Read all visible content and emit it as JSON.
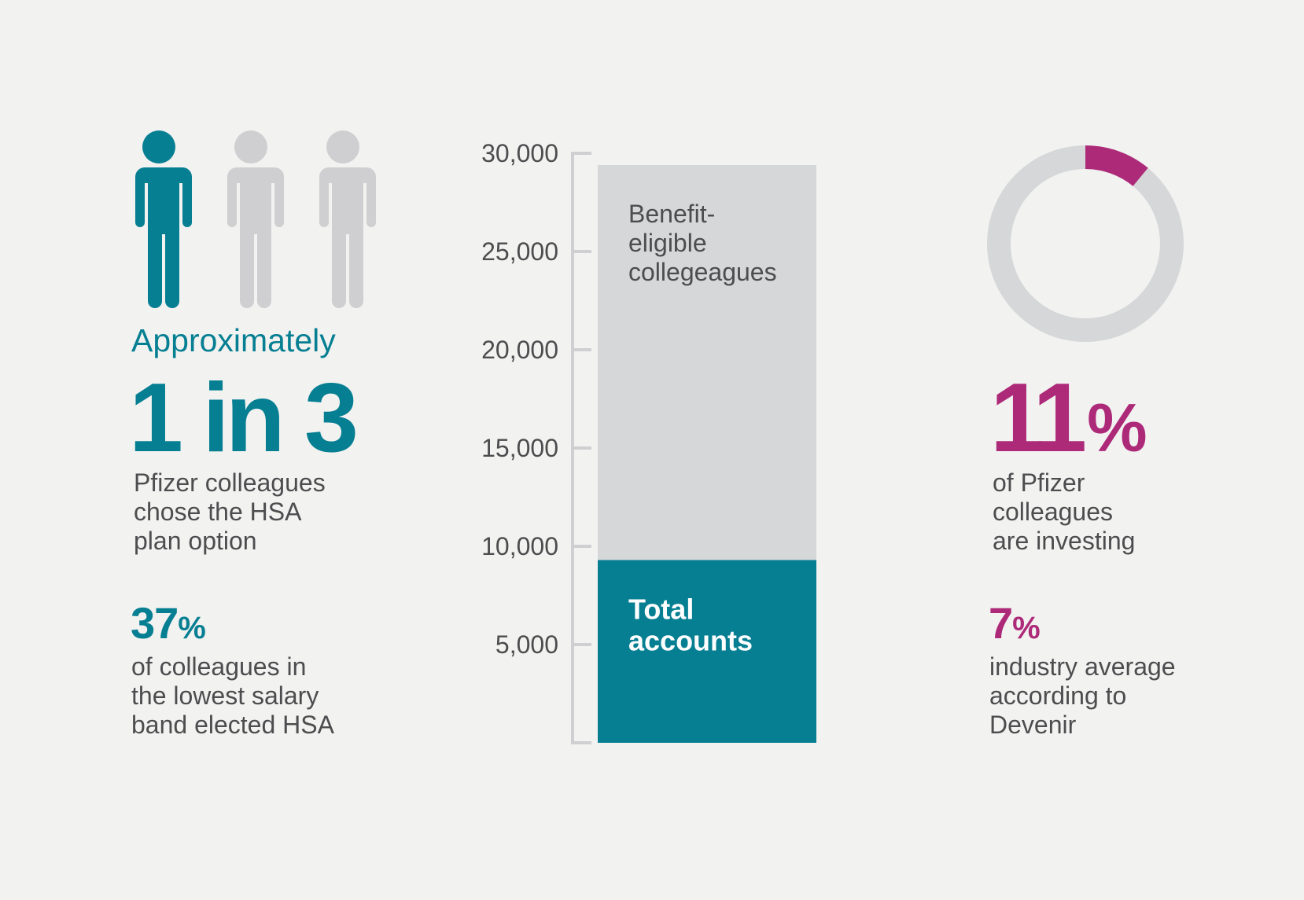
{
  "colors": {
    "teal": "#067f92",
    "magenta": "#ad2a79",
    "gray_light": "#d6d7d9",
    "gray_people": "#cfcfd1",
    "axis": "#cfcfd1",
    "text": "#4d4d4f",
    "background": "#f2f2f1"
  },
  "left_panel": {
    "people_icons": [
      {
        "icon": "person-icon",
        "highlighted": true
      },
      {
        "icon": "person-icon",
        "highlighted": false
      },
      {
        "icon": "person-icon",
        "highlighted": false
      }
    ],
    "approx_label": "Approximately",
    "ratio": "1 in 3",
    "ratio_desc": [
      "Pfizer colleagues",
      "chose the HSA",
      "plan option"
    ],
    "stat_value": "37",
    "stat_symbol": "%",
    "stat_desc": [
      "of colleagues in",
      "the lowest salary",
      "band elected HSA"
    ]
  },
  "chart_data": {
    "type": "bar",
    "stacked": false,
    "ylim": [
      0,
      30000
    ],
    "yticks": [
      5000,
      10000,
      15000,
      20000,
      25000,
      30000
    ],
    "ytick_labels": [
      "5,000",
      "10,000",
      "15,000",
      "20,000",
      "25,000",
      "30,000"
    ],
    "series": [
      {
        "name": "Benefit-eligible collegeagues",
        "label_lines": [
          "Benefit-",
          "eligible",
          "collegeagues"
        ],
        "value": 29400,
        "color": "#d6d7d9"
      },
      {
        "name": "Total accounts",
        "label_lines": [
          "Total",
          "accounts"
        ],
        "value": 9300,
        "color": "#067f92"
      }
    ]
  },
  "right_panel": {
    "donut": {
      "value_percent": 11,
      "fill_color": "#ad2a79",
      "track_color": "#d6d7d9"
    },
    "pct_value": "11",
    "pct_symbol": "%",
    "pct_desc": [
      "of Pfizer",
      "colleagues",
      "are investing"
    ],
    "stat_value": "7",
    "stat_symbol": "%",
    "stat_desc": [
      "industry average",
      "according to",
      "Devenir"
    ]
  }
}
